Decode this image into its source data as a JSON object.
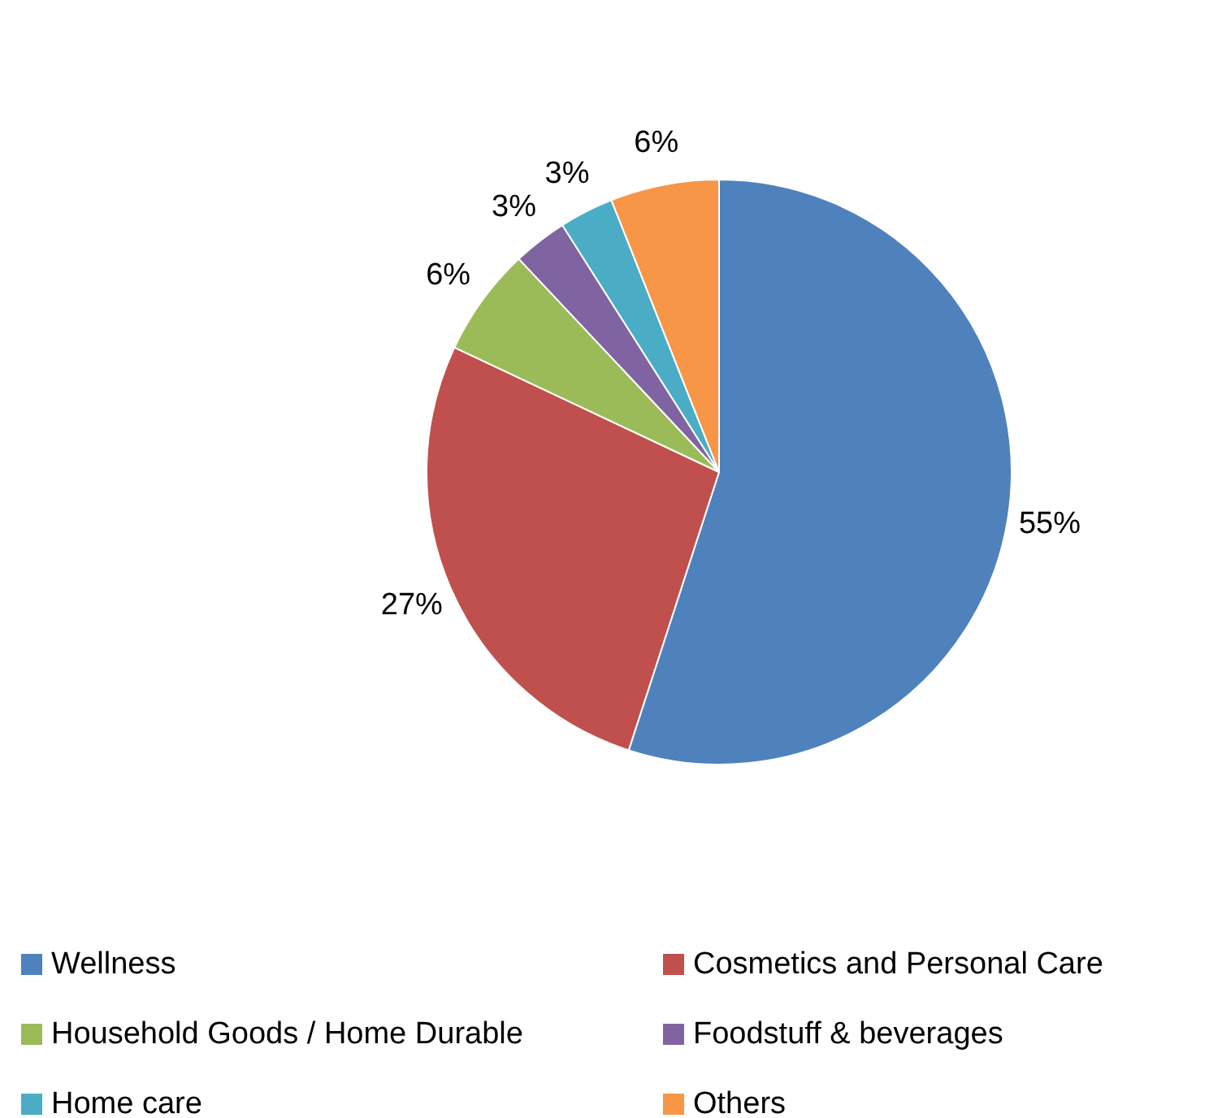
{
  "chart_data": {
    "type": "pie",
    "categories": [
      "Wellness",
      "Cosmetics and Personal Care",
      "Household Goods / Home Durable",
      "Foodstuff & beverages",
      "Home care",
      "Others"
    ],
    "values": [
      55,
      27,
      6,
      3,
      3,
      6
    ],
    "colors": [
      "#4f81bd",
      "#c0504d",
      "#9bbb59",
      "#8064a2",
      "#4bacc6",
      "#f79646"
    ],
    "value_labels": [
      "55%",
      "27%",
      "6%",
      "3%",
      "3%",
      "6%"
    ],
    "legend": "bottom"
  }
}
